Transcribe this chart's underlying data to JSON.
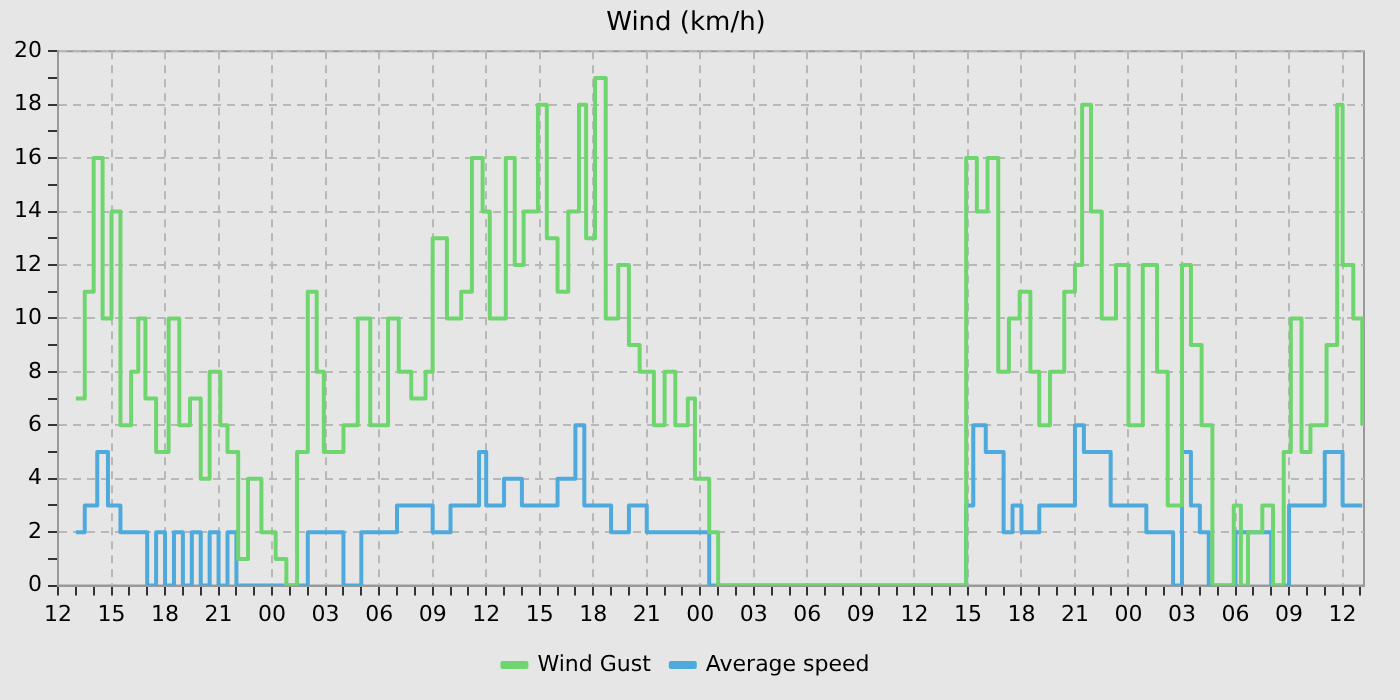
{
  "chart_data": {
    "type": "step",
    "title": "Wind (km/h)",
    "legend": "bottom",
    "grid": true,
    "marker": "none",
    "line_style": "solid",
    "xlim": [
      12,
      85.2
    ],
    "xticks": [
      {
        "value": 12,
        "label": "12"
      },
      {
        "value": 13,
        "label": null
      },
      {
        "value": 14,
        "label": null
      },
      {
        "value": 15,
        "label": "15"
      },
      {
        "value": 16,
        "label": null
      },
      {
        "value": 17,
        "label": null
      },
      {
        "value": 18,
        "label": "18"
      },
      {
        "value": 19,
        "label": null
      },
      {
        "value": 20,
        "label": null
      },
      {
        "value": 21,
        "label": "21"
      },
      {
        "value": 22,
        "label": null
      },
      {
        "value": 23,
        "label": null
      },
      {
        "value": 24,
        "label": "00"
      },
      {
        "value": 25,
        "label": null
      },
      {
        "value": 26,
        "label": null
      },
      {
        "value": 27,
        "label": "03"
      },
      {
        "value": 28,
        "label": null
      },
      {
        "value": 29,
        "label": null
      },
      {
        "value": 30,
        "label": "06"
      },
      {
        "value": 31,
        "label": null
      },
      {
        "value": 32,
        "label": null
      },
      {
        "value": 33,
        "label": "09"
      },
      {
        "value": 34,
        "label": null
      },
      {
        "value": 35,
        "label": null
      },
      {
        "value": 36,
        "label": "12"
      },
      {
        "value": 37,
        "label": null
      },
      {
        "value": 38,
        "label": null
      },
      {
        "value": 39,
        "label": "15"
      },
      {
        "value": 40,
        "label": null
      },
      {
        "value": 41,
        "label": null
      },
      {
        "value": 42,
        "label": "18"
      },
      {
        "value": 43,
        "label": null
      },
      {
        "value": 44,
        "label": null
      },
      {
        "value": 45,
        "label": "21"
      },
      {
        "value": 46,
        "label": null
      },
      {
        "value": 47,
        "label": null
      },
      {
        "value": 48,
        "label": "00"
      },
      {
        "value": 49,
        "label": null
      },
      {
        "value": 50,
        "label": null
      },
      {
        "value": 51,
        "label": "03"
      },
      {
        "value": 52,
        "label": null
      },
      {
        "value": 53,
        "label": null
      },
      {
        "value": 54,
        "label": "06"
      },
      {
        "value": 55,
        "label": null
      },
      {
        "value": 56,
        "label": null
      },
      {
        "value": 57,
        "label": "09"
      },
      {
        "value": 58,
        "label": null
      },
      {
        "value": 59,
        "label": null
      },
      {
        "value": 60,
        "label": "12"
      },
      {
        "value": 61,
        "label": null
      },
      {
        "value": 62,
        "label": null
      },
      {
        "value": 63,
        "label": "15"
      },
      {
        "value": 64,
        "label": null
      },
      {
        "value": 65,
        "label": null
      },
      {
        "value": 66,
        "label": "18"
      },
      {
        "value": 67,
        "label": null
      },
      {
        "value": 68,
        "label": null
      },
      {
        "value": 69,
        "label": "21"
      },
      {
        "value": 70,
        "label": null
      },
      {
        "value": 71,
        "label": null
      },
      {
        "value": 72,
        "label": "00"
      },
      {
        "value": 73,
        "label": null
      },
      {
        "value": 74,
        "label": null
      },
      {
        "value": 75,
        "label": "03"
      },
      {
        "value": 76,
        "label": null
      },
      {
        "value": 77,
        "label": null
      },
      {
        "value": 78,
        "label": "06"
      },
      {
        "value": 79,
        "label": null
      },
      {
        "value": 80,
        "label": null
      },
      {
        "value": 81,
        "label": "09"
      },
      {
        "value": 82,
        "label": null
      },
      {
        "value": 83,
        "label": null
      },
      {
        "value": 84,
        "label": "12"
      },
      {
        "value": 85,
        "label": null
      }
    ],
    "ylim": [
      0,
      20
    ],
    "yticks": [
      0,
      {
        "value": 1,
        "label": null
      },
      2,
      {
        "value": 3,
        "label": null
      },
      4,
      {
        "value": 5,
        "label": null
      },
      6,
      {
        "value": 7,
        "label": null
      },
      8,
      {
        "value": 9,
        "label": null
      },
      10,
      {
        "value": 11,
        "label": null
      },
      12,
      {
        "value": 13,
        "label": null
      },
      14,
      {
        "value": 15,
        "label": null
      },
      16,
      {
        "value": 17,
        "label": null
      },
      18,
      {
        "value": 19,
        "label": null
      },
      20
    ],
    "series": [
      {
        "name": "Wind Gust",
        "color": "#6fd66f",
        "x": [
          13,
          13.5,
          14,
          14.5,
          15,
          15.5,
          16.1,
          16.5,
          16.9,
          17.5,
          18.2,
          18.8,
          19.4,
          20,
          20.5,
          21.1,
          21.5,
          22.1,
          22.65,
          23.4,
          24.2,
          24.8,
          25.4,
          26,
          26.5,
          26.9,
          27.5,
          28,
          28.8,
          29.5,
          30.5,
          31.1,
          31.8,
          32.6,
          33,
          33.8,
          34.6,
          35.2,
          35.8,
          36.2,
          37.1,
          37.6,
          38.1,
          38.9,
          39.4,
          40,
          40.6,
          41.2,
          41.6,
          42.1,
          42.7,
          43.4,
          44,
          44.6,
          45.4,
          46,
          46.6,
          47.3,
          47.7,
          48.5,
          49,
          62.9,
          63.5,
          64.1,
          64.7,
          65.3,
          65.9,
          66.5,
          67,
          67.6,
          68.4,
          69,
          69.4,
          69.9,
          70.5,
          71.3,
          72,
          72.8,
          73.6,
          74.2,
          75,
          75.5,
          76.1,
          76.7,
          77.9,
          78.3,
          78.7,
          79.5,
          80.1,
          80.7,
          81.1,
          81.7,
          82.2,
          82.7,
          83.1,
          83.7,
          84,
          84.6,
          85.1
        ],
        "values": [
          7,
          11,
          16,
          10,
          14,
          6,
          8,
          10,
          7,
          5,
          10,
          6,
          7,
          4,
          8,
          6,
          5,
          1,
          4,
          2,
          1,
          0,
          5,
          11,
          8,
          5,
          5,
          6,
          10,
          6,
          10,
          8,
          7,
          8,
          13,
          10,
          11,
          16,
          14,
          10,
          16,
          12,
          14,
          18,
          13,
          11,
          14,
          18,
          13,
          19,
          10,
          12,
          9,
          8,
          6,
          8,
          6,
          7,
          4,
          2,
          0,
          16,
          14,
          16,
          8,
          10,
          11,
          8,
          6,
          8,
          11,
          12,
          18,
          14,
          10,
          12,
          6,
          12,
          8,
          3,
          12,
          9,
          6,
          0,
          3,
          0,
          2,
          3,
          0,
          5,
          10,
          5,
          6,
          6,
          9,
          18,
          12,
          10,
          6
        ]
      },
      {
        "name": "Average speed",
        "color": "#4ea9dc",
        "x": [
          13,
          13.5,
          14.2,
          14.8,
          15.5,
          16.5,
          17,
          17.5,
          18,
          18.5,
          19,
          19.5,
          20,
          20.5,
          21,
          21.5,
          22,
          26,
          27,
          28,
          29,
          30,
          31,
          32,
          33,
          34,
          35,
          35.6,
          36,
          37,
          38,
          39,
          40,
          41,
          41.5,
          42,
          43,
          44,
          45,
          46,
          48.5,
          62.9,
          63.3,
          64,
          65,
          65.5,
          66,
          67,
          68,
          69,
          69.5,
          70,
          71,
          72,
          73,
          74,
          74.5,
          75,
          75.5,
          76,
          76.5,
          78,
          79,
          80,
          81,
          82,
          83,
          84,
          85.1
        ],
        "values": [
          2,
          3,
          5,
          3,
          2,
          2,
          0,
          2,
          0,
          2,
          0,
          2,
          0,
          2,
          0,
          2,
          0,
          2,
          2,
          0,
          2,
          2,
          3,
          3,
          2,
          3,
          3,
          5,
          3,
          4,
          3,
          3,
          4,
          6,
          3,
          3,
          2,
          3,
          2,
          2,
          0,
          3,
          6,
          5,
          2,
          3,
          2,
          3,
          3,
          6,
          5,
          5,
          3,
          3,
          2,
          2,
          0,
          5,
          3,
          2,
          0,
          2,
          2,
          0,
          3,
          3,
          5,
          3,
          3
        ]
      }
    ]
  }
}
